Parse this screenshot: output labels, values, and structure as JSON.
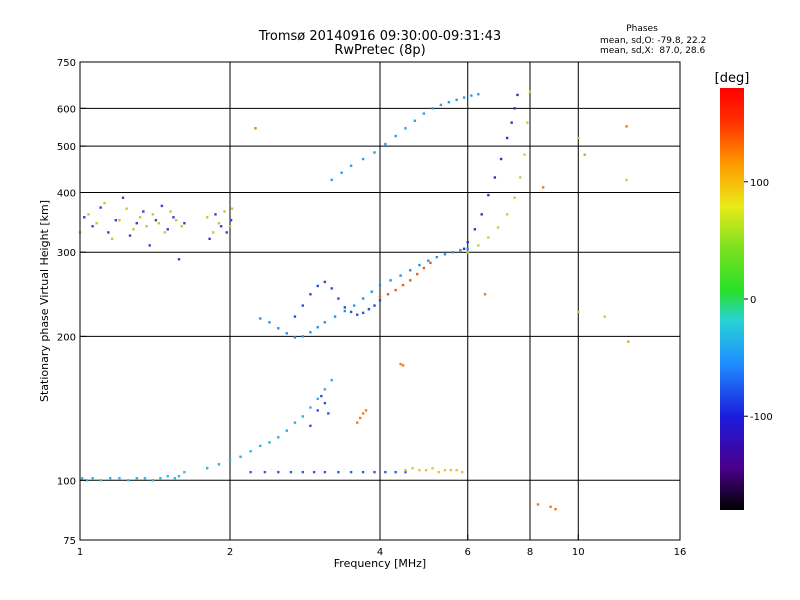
{
  "chart_data": {
    "type": "scatter",
    "title": "Tromsø 20140916 09:30:00-09:31:43",
    "subtitle": "RwPretec (8p)",
    "phases_header": "Phases",
    "phases_line1": "mean, sd,O: -79.8, 22.2",
    "phases_line2": "mean, sd,X:  87.0, 28.6",
    "xlabel": "Frequency [MHz]",
    "ylabel": "Stationary phase Virtual Height [km]",
    "x_scale": "log",
    "y_scale": "log",
    "xlim": [
      1,
      16
    ],
    "ylim": [
      75,
      750
    ],
    "x_ticks": [
      1,
      2,
      4,
      6,
      8,
      10,
      16
    ],
    "y_ticks": [
      75,
      100,
      200,
      300,
      400,
      500,
      600,
      750
    ],
    "grid_x": [
      2,
      4,
      6,
      8,
      10
    ],
    "grid_y": [
      100,
      200,
      300,
      400,
      500,
      600
    ],
    "colorbar": {
      "label": "[deg]",
      "range": [
        -180,
        180
      ],
      "ticks": [
        100,
        0,
        -100
      ]
    },
    "series": [
      {
        "color": "#33b8e8",
        "x": [
          1.01,
          1.03,
          1.06,
          1.1,
          1.15,
          1.2,
          1.25,
          1.3,
          1.35,
          1.4,
          1.45,
          1.5,
          1.55,
          1.58,
          1.62
        ],
        "y": [
          101,
          100,
          101,
          100,
          101,
          101,
          100,
          101,
          101,
          100,
          101,
          102,
          101,
          102,
          104
        ]
      },
      {
        "color": "#2b63e6",
        "x": [
          2.2,
          2.35,
          2.5,
          2.65,
          2.8,
          2.95,
          3.1,
          3.3,
          3.5,
          3.7,
          3.9,
          4.1,
          4.3,
          4.5
        ],
        "y": [
          104,
          104,
          104,
          104,
          104,
          104,
          104,
          104,
          104,
          104,
          104,
          104,
          104,
          104
        ]
      },
      {
        "color": "#e0c830",
        "x": [
          4.5,
          4.65,
          4.8,
          4.95,
          5.1,
          5.25,
          5.4,
          5.55,
          5.7,
          5.85
        ],
        "y": [
          105,
          106,
          105,
          105,
          106,
          104,
          105,
          105,
          105,
          104
        ]
      },
      {
        "color": "#2bb0e0",
        "x": [
          1.8,
          1.9,
          2.0,
          2.1,
          2.2,
          2.3,
          2.4,
          2.5,
          2.6,
          2.7,
          2.8,
          2.9,
          3.0,
          3.1,
          3.2
        ],
        "y": [
          106,
          108,
          110,
          112,
          115,
          118,
          120,
          123,
          127,
          132,
          136,
          142,
          148,
          155,
          162
        ]
      },
      {
        "color": "#2b55e0",
        "x": [
          2.9,
          3.0,
          3.05,
          3.1,
          3.15
        ],
        "y": [
          130,
          140,
          150,
          145,
          138
        ]
      },
      {
        "color": "#f07a28",
        "x": [
          3.6,
          3.65,
          3.7,
          3.75,
          4.4,
          4.45
        ],
        "y": [
          132,
          135,
          138,
          140,
          175,
          174
        ]
      },
      {
        "color": "#2b90e8",
        "x": [
          2.3,
          2.4,
          2.5,
          2.6,
          2.7,
          2.8,
          2.9,
          3.0,
          3.1,
          3.25,
          3.4,
          3.55,
          3.7,
          3.85,
          4.0,
          4.2,
          4.4,
          4.6,
          4.8,
          5.0,
          5.2,
          5.4,
          5.6,
          5.8,
          6.0
        ],
        "y": [
          218,
          214,
          208,
          203,
          199,
          200,
          204,
          209,
          214,
          220,
          226,
          232,
          240,
          248,
          256,
          262,
          268,
          275,
          282,
          288,
          293,
          297,
          300,
          303,
          305
        ]
      },
      {
        "color": "#2b50d8",
        "x": [
          2.7,
          2.8,
          2.9,
          3.0,
          3.1,
          3.2,
          3.3,
          3.4,
          3.5,
          3.6,
          3.7,
          3.8,
          3.9,
          4.0
        ],
        "y": [
          220,
          232,
          245,
          255,
          260,
          252,
          240,
          230,
          225,
          222,
          224,
          228,
          232,
          238
        ]
      },
      {
        "color": "#ee5a1e",
        "x": [
          4.0,
          4.15,
          4.3,
          4.45,
          4.6,
          4.75,
          4.9,
          5.05
        ],
        "y": [
          242,
          245,
          250,
          256,
          262,
          270,
          278,
          285
        ]
      },
      {
        "color": "#2a38c8",
        "x": [
          5.9,
          6.0,
          6.2,
          6.4,
          6.6,
          6.8,
          7.0,
          7.2,
          7.35,
          7.45,
          7.55
        ],
        "y": [
          305,
          315,
          335,
          360,
          395,
          430,
          470,
          520,
          560,
          600,
          640
        ]
      },
      {
        "color": "#b0e030",
        "x": [
          6.0,
          6.3,
          6.6,
          6.9,
          7.2,
          7.45,
          7.65,
          7.8,
          7.9,
          8.0
        ],
        "y": [
          300,
          310,
          322,
          338,
          360,
          390,
          430,
          480,
          560,
          650
        ]
      },
      {
        "color": "#2ba0e8",
        "x": [
          3.2,
          3.35,
          3.5,
          3.7,
          3.9,
          4.1,
          4.3,
          4.5,
          4.7,
          4.9,
          5.1,
          5.3,
          5.5,
          5.7,
          5.9,
          6.1,
          6.3
        ],
        "y": [
          425,
          440,
          455,
          470,
          485,
          505,
          525,
          545,
          565,
          585,
          600,
          610,
          618,
          625,
          632,
          638,
          642
        ]
      },
      {
        "color": "#d8c030",
        "x": [
          1.0,
          1.04,
          1.08,
          1.12,
          1.16,
          1.2,
          1.24,
          1.28,
          1.32,
          1.36,
          1.4,
          1.44,
          1.48,
          1.52,
          1.56,
          1.6,
          1.8,
          1.85,
          1.9,
          1.95,
          2.0,
          2.02
        ],
        "y": [
          330,
          360,
          345,
          380,
          320,
          350,
          370,
          335,
          355,
          340,
          360,
          345,
          330,
          365,
          350,
          340,
          355,
          330,
          345,
          365,
          340,
          370
        ]
      },
      {
        "color": "#3844c8",
        "x": [
          1.02,
          1.06,
          1.1,
          1.14,
          1.18,
          1.22,
          1.26,
          1.3,
          1.34,
          1.38,
          1.42,
          1.46,
          1.5,
          1.54,
          1.58,
          1.62,
          1.82,
          1.87,
          1.92,
          1.97,
          2.01
        ],
        "y": [
          355,
          340,
          372,
          330,
          350,
          390,
          325,
          345,
          365,
          310,
          350,
          375,
          335,
          355,
          290,
          345,
          320,
          360,
          340,
          330,
          350
        ]
      },
      {
        "color": "#e08020",
        "x": [
          2.25,
          6.5,
          8.3,
          8.8,
          9.0,
          8.5,
          12.5
        ],
        "y": [
          545,
          245,
          89,
          88,
          87,
          410,
          550
        ]
      },
      {
        "color": "#a0e040",
        "x": [
          10.0,
          10.0,
          11.3,
          12.5
        ],
        "y": [
          225,
          520,
          220,
          425
        ]
      },
      {
        "color": "#e8a020",
        "x": [
          10.3,
          12.6
        ],
        "y": [
          480,
          195
        ]
      }
    ]
  }
}
